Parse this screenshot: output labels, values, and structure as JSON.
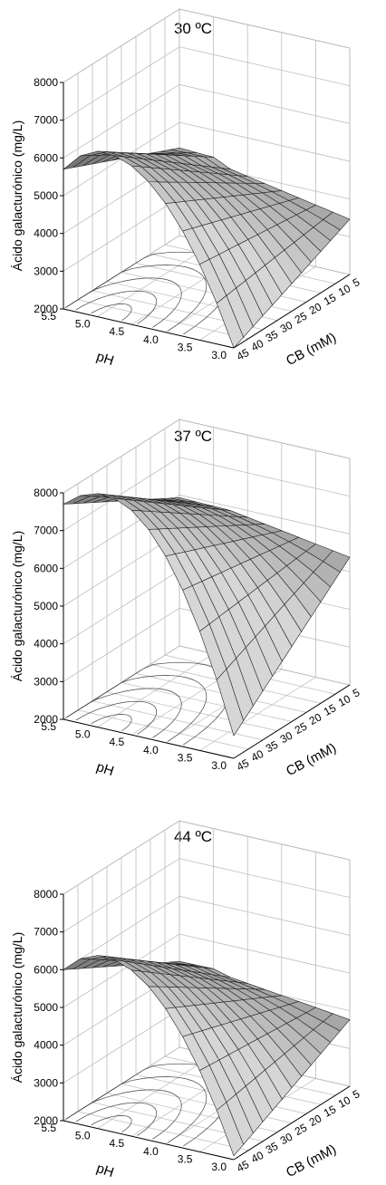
{
  "chart_data": [
    {
      "type": "surface",
      "title": "30 ºC",
      "xlabel": "CB (mM)",
      "ylabel": "pH",
      "zlabel": "Ácido galacturónico (mg/L)",
      "x_ticks": [
        "5",
        "10",
        "15",
        "20",
        "25",
        "30",
        "35",
        "40",
        "45"
      ],
      "y_ticks": [
        "3.0",
        "3.5",
        "4.0",
        "4.5",
        "5.0",
        "5.5"
      ],
      "z_ticks": [
        "2000",
        "3000",
        "4000",
        "5000",
        "6000",
        "7000",
        "8000"
      ],
      "xlim": [
        5,
        45
      ],
      "ylim": [
        3.0,
        5.5
      ],
      "zlim": [
        2000,
        8000
      ],
      "grid": true,
      "surface": {
        "x": [
          5,
          45
        ],
        "y": [
          3.0,
          5.5
        ],
        "z_corners": {
          "cb5_ph3": 3400,
          "cb5_ph5.5": 4000,
          "cb45_ph3": 2000,
          "cb45_ph5.5": 5700
        },
        "z_max": {
          "cb": 45,
          "ph": 4.9,
          "value": 6400
        }
      }
    },
    {
      "type": "surface",
      "title": "37 ºC",
      "xlabel": "CB (mM)",
      "ylabel": "pH",
      "zlabel": "Ácido galacturónico (mg/L)",
      "x_ticks": [
        "5",
        "10",
        "15",
        "20",
        "25",
        "30",
        "35",
        "40",
        "45"
      ],
      "y_ticks": [
        "3.0",
        "3.5",
        "4.0",
        "4.5",
        "5.0",
        "5.5"
      ],
      "z_ticks": [
        "2000",
        "3000",
        "4000",
        "5000",
        "6000",
        "7000",
        "8000"
      ],
      "xlim": [
        5,
        45
      ],
      "ylim": [
        3.0,
        5.5
      ],
      "zlim": [
        2000,
        8000
      ],
      "grid": true,
      "surface": {
        "x": [
          5,
          45
        ],
        "y": [
          3.0,
          5.5
        ],
        "z_corners": {
          "cb5_ph3": 5300,
          "cb5_ph5.5": 5700,
          "cb45_ph3": 2600,
          "cb45_ph5.5": 7700
        },
        "z_max": {
          "cb": 45,
          "ph": 4.9,
          "value": 8200
        }
      }
    },
    {
      "type": "surface",
      "title": "44 ºC",
      "xlabel": "CB (mM)",
      "ylabel": "pH",
      "zlabel": "Ácido galacturónico (mg/L)",
      "x_ticks": [
        "5",
        "10",
        "15",
        "20",
        "25",
        "30",
        "35",
        "40",
        "45"
      ],
      "y_ticks": [
        "3.0",
        "3.5",
        "4.0",
        "4.5",
        "5.0",
        "5.5"
      ],
      "z_ticks": [
        "2000",
        "3000",
        "4000",
        "5000",
        "6000",
        "7000",
        "8000"
      ],
      "xlim": [
        5,
        45
      ],
      "ylim": [
        3.0,
        5.5
      ],
      "zlim": [
        2000,
        8000
      ],
      "grid": true,
      "surface": {
        "x": [
          5,
          45
        ],
        "y": [
          3.0,
          5.5
        ],
        "z_corners": {
          "cb5_ph3": 3700,
          "cb5_ph5.5": 4000,
          "cb45_ph3": 2100,
          "cb45_ph5.5": 6000
        },
        "z_max": {
          "cb": 45,
          "ph": 4.9,
          "value": 6600
        }
      }
    }
  ],
  "colors": {
    "surface_light": "#d6d6d6",
    "surface_dark": "#5a5a5a",
    "grid": "#bdbdbd",
    "axis": "#000000"
  }
}
